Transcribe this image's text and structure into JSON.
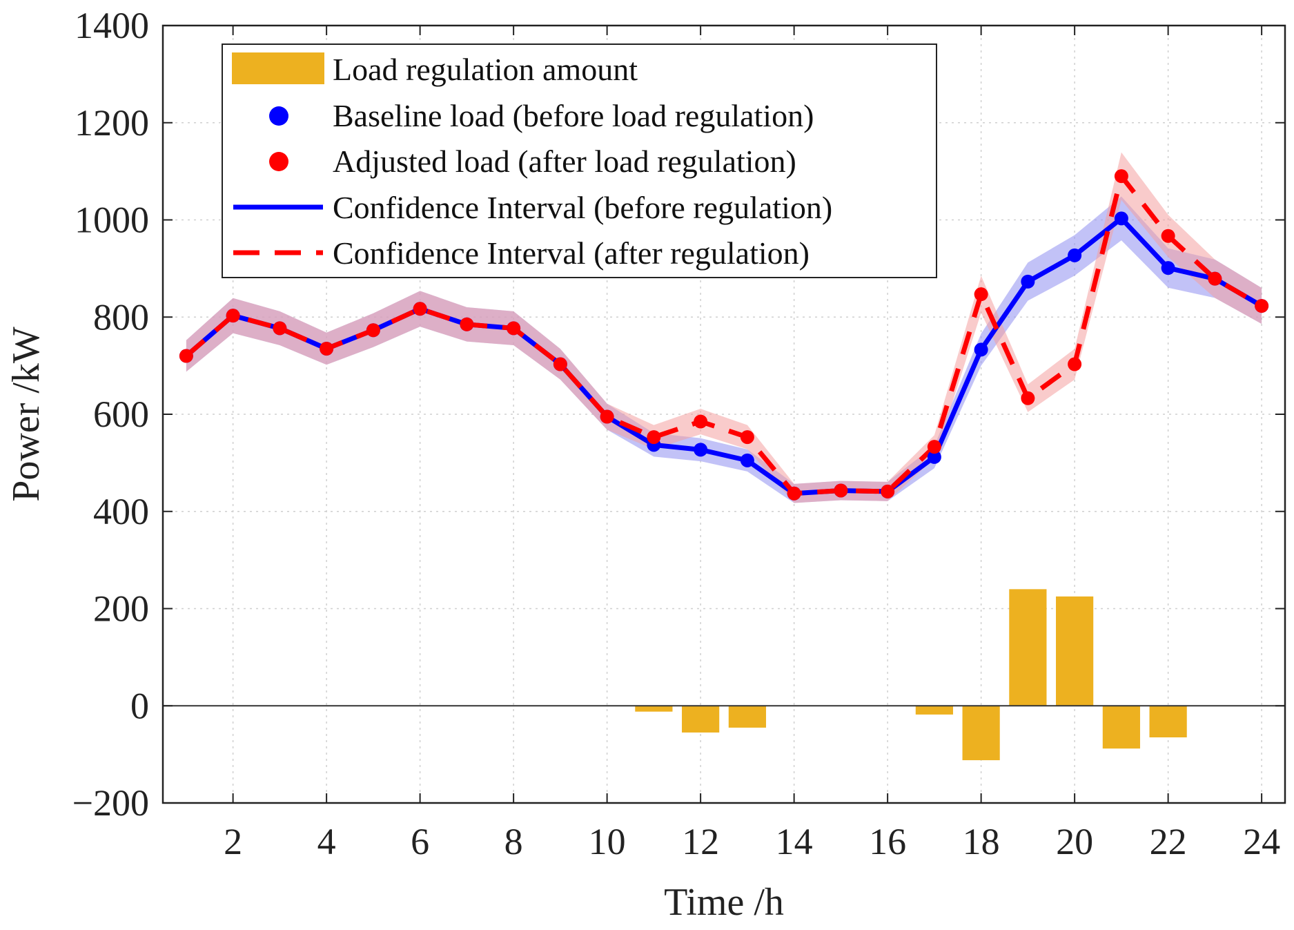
{
  "chart_data": {
    "type": "line",
    "title": "",
    "xlabel": "Time /h",
    "ylabel": "Power /kW",
    "xlim": [
      0.5,
      24.5
    ],
    "ylim": [
      -200,
      1400
    ],
    "xticks": [
      2,
      4,
      6,
      8,
      10,
      12,
      14,
      16,
      18,
      20,
      22,
      24
    ],
    "yticks": [
      -200,
      0,
      200,
      400,
      600,
      800,
      1000,
      1200,
      1400
    ],
    "ytick_labels": [
      "−200",
      "0",
      "200",
      "400",
      "600",
      "800",
      "1000",
      "1200",
      "1400"
    ],
    "grid": true,
    "legend_position": "top-left",
    "x": [
      1,
      2,
      3,
      4,
      5,
      6,
      7,
      8,
      9,
      10,
      11,
      12,
      13,
      14,
      15,
      16,
      17,
      18,
      19,
      20,
      21,
      22,
      23,
      24
    ],
    "series": [
      {
        "name": "Load regulation amount",
        "kind": "bar",
        "color": "#EDB120",
        "values": [
          0,
          0,
          0,
          0,
          0,
          0,
          0,
          0,
          0,
          0,
          -12,
          -55,
          -45,
          0,
          0,
          0,
          -18,
          -112,
          240,
          225,
          -88,
          -65,
          0,
          0
        ]
      },
      {
        "name": "Baseline load (before load regulation)",
        "kind": "markers",
        "color": "#0000FF",
        "values": [
          720,
          803,
          777,
          735,
          773,
          817,
          785,
          777,
          703,
          595,
          537,
          527,
          505,
          437,
          443,
          441,
          512,
          733,
          873,
          927,
          1003,
          901,
          879,
          823
        ]
      },
      {
        "name": "Adjusted load (after load regulation)",
        "kind": "markers",
        "color": "#FF0000",
        "values": [
          720,
          803,
          777,
          735,
          773,
          817,
          785,
          777,
          703,
          595,
          553,
          585,
          553,
          437,
          443,
          441,
          533,
          847,
          633,
          703,
          1090,
          967,
          879,
          823
        ]
      },
      {
        "name": "Confidence Interval (before regulation)",
        "kind": "solid-line-band",
        "color": "#0000FF",
        "band_color": "#9999F2"
      },
      {
        "name": "Confidence Interval (after regulation)",
        "kind": "dashed-line-band",
        "color": "#FF0000",
        "band_color": "#F4A0A0"
      }
    ]
  }
}
